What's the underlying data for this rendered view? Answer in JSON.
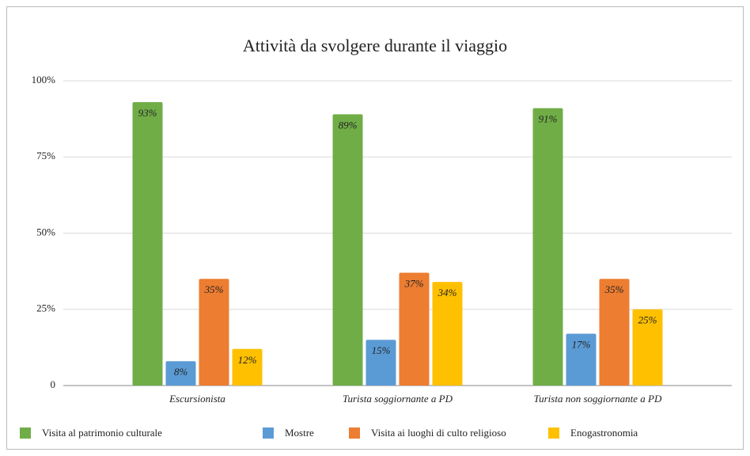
{
  "chart_data": {
    "type": "bar",
    "title": "Attività da svolgere durante il viaggio",
    "categories": [
      "Escursionista",
      "Turista soggiornante a PD",
      "Turista non soggiornante a PD"
    ],
    "series": [
      {
        "name": "Visita al patrimonio culturale",
        "color": "#70ad47",
        "values": [
          93,
          89,
          91
        ],
        "value_labels": [
          "93%",
          "89%",
          "91%"
        ]
      },
      {
        "name": "Mostre",
        "color": "#5b9bd5",
        "values": [
          8,
          15,
          17
        ],
        "value_labels": [
          "8%",
          "15%",
          "17%"
        ]
      },
      {
        "name": "Visita ai luoghi di culto religioso",
        "color": "#ed7d31",
        "values": [
          35,
          37,
          35
        ],
        "value_labels": [
          "35%",
          "37%",
          "35%"
        ]
      },
      {
        "name": "Enogastronomia",
        "color": "#ffc000",
        "values": [
          12,
          34,
          25
        ],
        "value_labels": [
          "12%",
          "34%",
          "25%"
        ]
      }
    ],
    "ylim": [
      0,
      100
    ],
    "yticks": [
      0,
      {
        "value": 25,
        "label": "25%"
      },
      {
        "value": 50,
        "label": "50%"
      },
      {
        "value": 75,
        "label": "75%"
      },
      {
        "value": 100,
        "label": "100%"
      }
    ],
    "grid": true,
    "legend": "bottom"
  }
}
